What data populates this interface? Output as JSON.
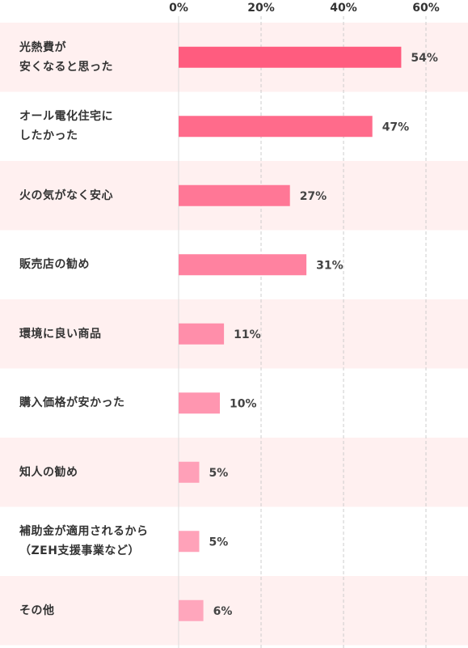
{
  "chart_data": {
    "type": "bar",
    "orientation": "horizontal",
    "xlim": [
      0,
      70
    ],
    "x_ticks": [
      0,
      20,
      40,
      60
    ],
    "tick_format": "%",
    "grid": true,
    "categories": [
      [
        "光熱費が",
        "安くなると思った"
      ],
      [
        "オール電化住宅に",
        "したかった"
      ],
      [
        "火の気がなく安心"
      ],
      [
        "販売店の勧め"
      ],
      [
        "環境に良い商品"
      ],
      [
        "購入価格が安かった"
      ],
      [
        "知人の勧め"
      ],
      [
        "補助金が適用されるから",
        "（ZEH支援事業など）"
      ],
      [
        "その他"
      ]
    ],
    "values": [
      54,
      47,
      27,
      31,
      11,
      10,
      5,
      5,
      6
    ],
    "value_suffix": "%",
    "bar_colors": [
      "#ff5c7f",
      "#ff6b8b",
      "#ff7796",
      "#ff82a0",
      "#ff8eaa",
      "#ff96b0",
      "#ffa0b8",
      "#ffa2b9",
      "#ffa6bc"
    ],
    "row_band_color": "#fff0f0"
  }
}
